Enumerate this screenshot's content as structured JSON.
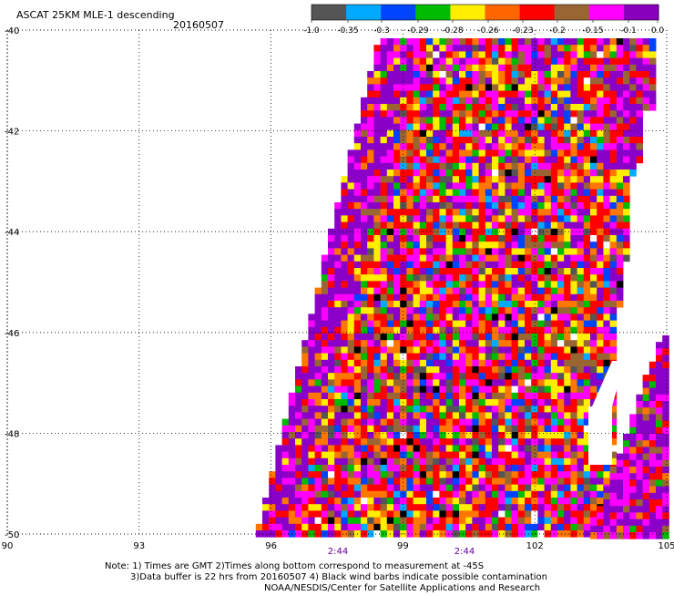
{
  "title": "ASCAT 25KM MLE-1 descending",
  "date": "20160507",
  "colorbar": {
    "colors": [
      "#555555",
      "#00aaff",
      "#0044ff",
      "#00bb00",
      "#ffee00",
      "#ff6600",
      "#ff0000",
      "#996633",
      "#ff00ff",
      "#8800bb"
    ],
    "tick_labels": [
      "-1.0",
      "-0.35",
      "-0.3",
      "-0.29",
      "-0.28",
      "-0.26",
      "-0.23",
      "-0.2",
      "-0.15",
      "-0.1",
      "0.0"
    ]
  },
  "map": {
    "lon_range": [
      90,
      105
    ],
    "lat_range": [
      -50,
      -40
    ],
    "lon_ticks": [
      "90",
      "93",
      "96",
      "99",
      "102",
      "105"
    ],
    "lat_ticks": [
      "-40",
      "-42",
      "-44",
      "-46",
      "-48",
      "-50"
    ],
    "grid": "dotted",
    "swath_colors": {
      "purple": "#8a00c8",
      "magenta": "#ff00ff",
      "red": "#ff0000",
      "orange": "#ff7700",
      "yellow": "#ffee00",
      "green": "#00bb00",
      "blue": "#0044ff",
      "cyan": "#00aaff",
      "brown": "#996633",
      "gray": "#555555",
      "white": "#ffffff",
      "black": "#000000"
    }
  },
  "times": [
    "2:44",
    "2:44"
  ],
  "times_color": "#660099",
  "notes": {
    "line1": "Note: 1) Times are GMT 2)Times along bottom correspond to measurement at -45S",
    "line2": "3)Data buffer is 22 hrs from 20160507 4) Black wind barbs indicate possible contamination",
    "line3": "NOAA/NESDIS/Center for Satellite Applications and Research"
  }
}
